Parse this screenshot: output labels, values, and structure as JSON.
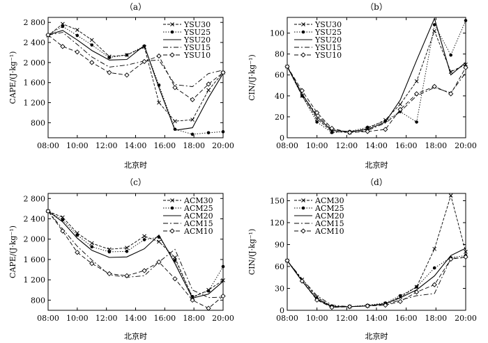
{
  "chart_data": [
    {
      "type": "line",
      "title": "（a）",
      "xlabel": "北京时",
      "ylabel": "CAPE/(J·kg⁻¹)",
      "xlim": [
        8,
        20
      ],
      "ylim": [
        500,
        2900
      ],
      "x_ticks": [
        "08:00",
        "10:00",
        "12:00",
        "14:00",
        "16:00",
        "18:00",
        "20:00"
      ],
      "y_ticks": [
        "800",
        "1 200",
        "1 600",
        "2 000",
        "2 400",
        "2 800"
      ],
      "y_tick_values": [
        800,
        1200,
        1600,
        2000,
        2400,
        2800
      ],
      "legend_position": "top-right",
      "x": [
        8,
        9,
        10,
        11,
        12.2,
        13.4,
        14.6,
        15.6,
        16.7,
        17.9,
        19,
        20
      ],
      "series": [
        {
          "name": "YSU30",
          "style": "x-dash",
          "values": [
            2540,
            2770,
            2650,
            2450,
            2120,
            2150,
            2310,
            1200,
            830,
            860,
            1450,
            1800
          ]
        },
        {
          "name": "YSU25",
          "style": "dot-circle",
          "values": [
            2550,
            2720,
            2540,
            2350,
            2100,
            2150,
            2330,
            1550,
            670,
            570,
            600,
            620
          ]
        },
        {
          "name": "YSU20",
          "style": "solid",
          "values": [
            2550,
            2640,
            2450,
            2240,
            2050,
            2060,
            2340,
            1500,
            650,
            700,
            1300,
            1780
          ]
        },
        {
          "name": "YSU15",
          "style": "dashdot",
          "values": [
            2550,
            2600,
            2360,
            2110,
            1910,
            1950,
            2030,
            2050,
            1560,
            1520,
            1780,
            1850
          ]
        },
        {
          "name": "YSU10",
          "style": "diamond-dash",
          "values": [
            2550,
            2320,
            2210,
            2000,
            1800,
            1750,
            2020,
            2130,
            1500,
            1260,
            1570,
            1800
          ]
        }
      ]
    },
    {
      "type": "line",
      "title": "（b）",
      "xlabel": "北京时",
      "ylabel": "CIN/(J·kg⁻¹)",
      "xlim": [
        8,
        20
      ],
      "ylim": [
        0,
        115
      ],
      "x_ticks": [
        "08:00",
        "10:00",
        "12:00",
        "14:00",
        "16:00",
        "18:00",
        "20:00"
      ],
      "y_ticks": [
        "0",
        "20",
        "40",
        "60",
        "80",
        "100"
      ],
      "y_tick_values": [
        0,
        20,
        40,
        60,
        80,
        100
      ],
      "legend_position": "top-left",
      "x": [
        8,
        9,
        10,
        11,
        12.2,
        13.4,
        14.6,
        15.6,
        16.7,
        17.9,
        19,
        20
      ],
      "series": [
        {
          "name": "YSU30",
          "style": "x-dash",
          "values": [
            68,
            40,
            18,
            6,
            5,
            9,
            17,
            32,
            54,
            102,
            63,
            70
          ]
        },
        {
          "name": "YSU25",
          "style": "dot-circle",
          "values": [
            68,
            40,
            15,
            5,
            6,
            10,
            16,
            25,
            15,
            108,
            79,
            112
          ]
        },
        {
          "name": "YSU20",
          "style": "solid",
          "values": [
            68,
            42,
            20,
            7,
            6,
            8,
            15,
            36,
            74,
            114,
            60,
            72
          ]
        },
        {
          "name": "YSU15",
          "style": "dashdot",
          "values": [
            68,
            41,
            22,
            8,
            5,
            7,
            14,
            25,
            40,
            48,
            43,
            62
          ]
        },
        {
          "name": "YSU10",
          "style": "diamond-dash",
          "values": [
            68,
            45,
            24,
            9,
            5,
            6,
            8,
            27,
            42,
            49,
            42,
            67
          ]
        }
      ]
    },
    {
      "type": "line",
      "title": "（c）",
      "xlabel": "北京时",
      "ylabel": "CAPE/(J·kg⁻¹)",
      "xlim": [
        8,
        20
      ],
      "ylim": [
        600,
        2900
      ],
      "x_ticks": [
        "08:00",
        "10:00",
        "12:00",
        "14:00",
        "16:00",
        "18:00",
        "20:00"
      ],
      "y_ticks": [
        "800",
        "1 200",
        "1 600",
        "2 000",
        "2 400",
        "2 800"
      ],
      "y_tick_values": [
        800,
        1200,
        1600,
        2000,
        2400,
        2800
      ],
      "legend_position": "top-right",
      "x": [
        8,
        9,
        10,
        11,
        12.2,
        13.4,
        14.6,
        15.6,
        16.7,
        17.9,
        19,
        20
      ],
      "series": [
        {
          "name": "ACM30",
          "style": "x-dash",
          "values": [
            2550,
            2430,
            2120,
            1920,
            1800,
            1830,
            2060,
            1950,
            1640,
            850,
            1000,
            1190
          ]
        },
        {
          "name": "ACM25",
          "style": "dot-circle",
          "values": [
            2550,
            2380,
            2080,
            1850,
            1750,
            1760,
            1990,
            2040,
            1580,
            870,
            980,
            1460
          ]
        },
        {
          "name": "ACM20",
          "style": "solid",
          "values": [
            2550,
            2340,
            2020,
            1780,
            1640,
            1650,
            1810,
            2080,
            1520,
            840,
            920,
            1170
          ]
        },
        {
          "name": "ACM15",
          "style": "dashdot",
          "values": [
            2550,
            2200,
            1860,
            1590,
            1300,
            1250,
            1280,
            1550,
            1800,
            1000,
            850,
            860
          ]
        },
        {
          "name": "ACM10",
          "style": "diamond-dash",
          "values": [
            2550,
            2160,
            1740,
            1520,
            1320,
            1280,
            1380,
            1550,
            1220,
            800,
            640,
            880
          ]
        }
      ]
    },
    {
      "type": "line",
      "title": "（d）",
      "xlabel": "北京时",
      "ylabel": "CIN/(J·kg⁻¹)",
      "xlim": [
        8,
        20
      ],
      "ylim": [
        0,
        160
      ],
      "x_ticks": [
        "08:00",
        "10:00",
        "12:00",
        "14:00",
        "16:00",
        "18:00",
        "20:00"
      ],
      "y_ticks": [
        "0",
        "30",
        "60",
        "90",
        "120",
        "150"
      ],
      "y_tick_values": [
        0,
        30,
        60,
        90,
        120,
        150
      ],
      "legend_position": "top-left",
      "x": [
        8,
        9,
        10,
        11,
        12.2,
        13.4,
        14.6,
        15.6,
        16.7,
        17.9,
        19,
        20
      ],
      "series": [
        {
          "name": "ACM30",
          "style": "x-dash",
          "values": [
            68,
            42,
            18,
            5,
            5,
            6,
            9,
            18,
            32,
            84,
            157,
            80
          ]
        },
        {
          "name": "ACM25",
          "style": "dot-circle",
          "values": [
            68,
            40,
            16,
            6,
            5,
            7,
            10,
            20,
            32,
            58,
            72,
            75
          ]
        },
        {
          "name": "ACM20",
          "style": "solid",
          "values": [
            68,
            40,
            15,
            5,
            5,
            6,
            9,
            17,
            28,
            47,
            75,
            85
          ]
        },
        {
          "name": "ACM15",
          "style": "dashdot",
          "values": [
            68,
            43,
            20,
            7,
            5,
            6,
            8,
            14,
            20,
            23,
            71,
            72
          ]
        },
        {
          "name": "ACM10",
          "style": "diamond-dash",
          "values": [
            68,
            40,
            14,
            4,
            5,
            6,
            7,
            12,
            25,
            35,
            70,
            73
          ]
        }
      ]
    }
  ]
}
